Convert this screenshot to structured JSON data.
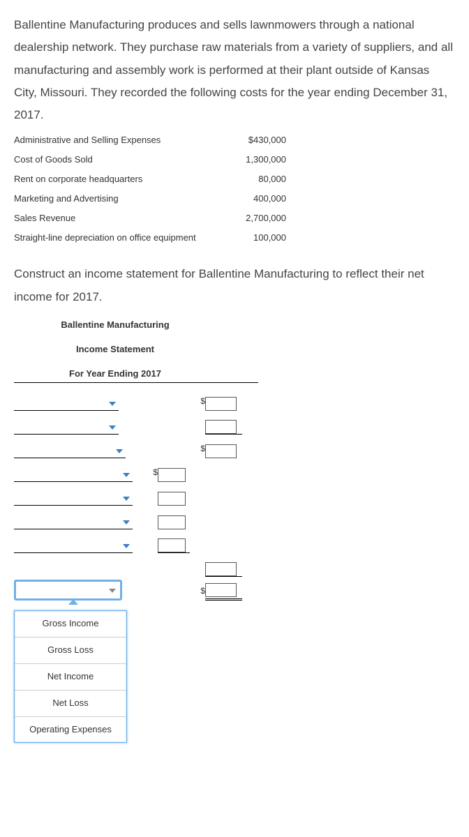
{
  "paragraph1": "Ballentine Manufacturing produces and sells lawnmowers through a national dealership network. They purchase raw materials from a variety of suppliers, and all manufacturing and assembly work is performed at their plant outside of Kansas City, Missouri. They recorded the following costs for the year ending December 31, 2017.",
  "costs": [
    {
      "label": "Administrative and Selling Expenses",
      "value": "$430,000"
    },
    {
      "label": "Cost of Goods Sold",
      "value": "1,300,000"
    },
    {
      "label": "Rent on corporate headquarters",
      "value": "80,000"
    },
    {
      "label": "Marketing and Advertising",
      "value": "400,000"
    },
    {
      "label": "Sales Revenue",
      "value": "2,700,000"
    },
    {
      "label": "Straight-line depreciation on office equipment",
      "value": "100,000"
    }
  ],
  "paragraph2": "Construct an income statement for Ballentine Manufacturing to reflect their net income for 2017.",
  "statement": {
    "company": "Ballentine Manufacturing",
    "title": "Income Statement",
    "period": "For Year Ending 2017"
  },
  "worksheet": {
    "layout": [
      {
        "dd_width": 150,
        "col2_dollar": true,
        "col2_box_w": 45
      },
      {
        "dd_width": 150,
        "col2_box_w": 45,
        "col2_underline": true
      },
      {
        "dd_width": 160,
        "col2_dollar": true,
        "col2_box_w": 45
      },
      {
        "dd_width": 170,
        "col1_dollar": true,
        "col1_box_w": 40
      },
      {
        "dd_width": 170,
        "col1_box_w": 40
      },
      {
        "dd_width": 170,
        "col1_box_w": 40
      },
      {
        "dd_width": 170,
        "col1_box_w": 40,
        "col1_underline": true
      },
      {
        "dd_blank": 170,
        "col2_box_w": 45,
        "col2_underline": true
      },
      {
        "dd_width": 155,
        "active": true,
        "col2_dollar": true,
        "col2_box_w": 45,
        "col2_double": true
      }
    ]
  },
  "dropdown_options": [
    "Gross Income",
    "Gross Loss",
    "Net Income",
    "Net Loss",
    "Operating Expenses"
  ]
}
